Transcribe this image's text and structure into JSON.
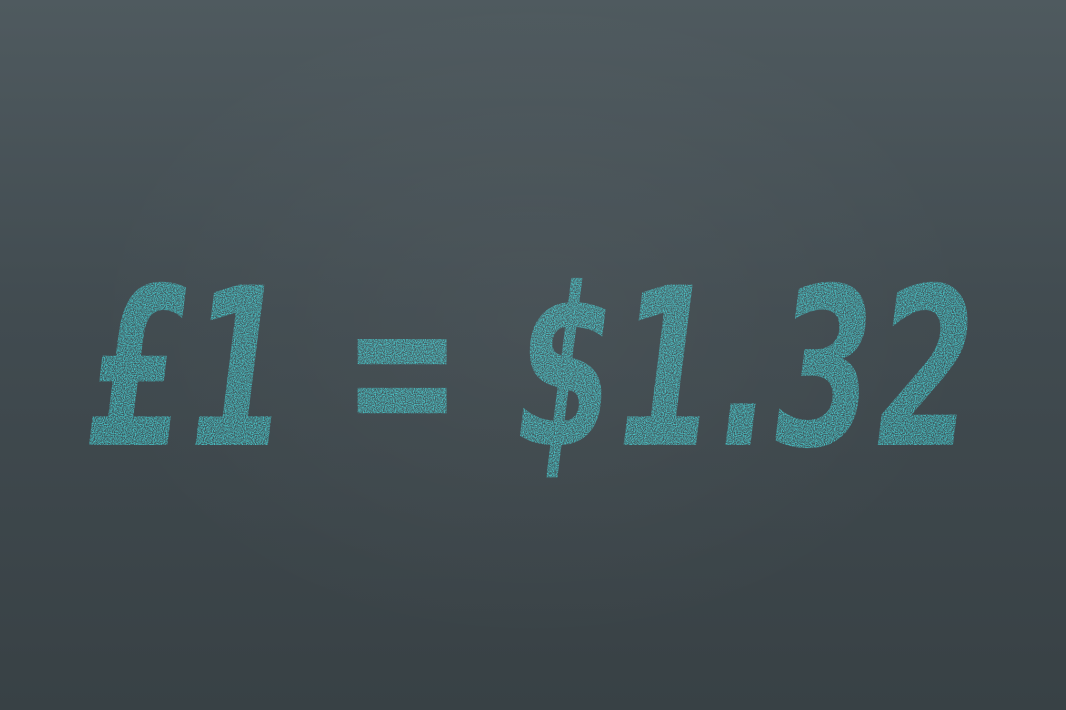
{
  "chalkboard": {
    "equation": "£1 = $1.32",
    "chalk_color": "#46c3c7",
    "background_top": "#4f5a5f",
    "background_bottom": "#384145"
  }
}
